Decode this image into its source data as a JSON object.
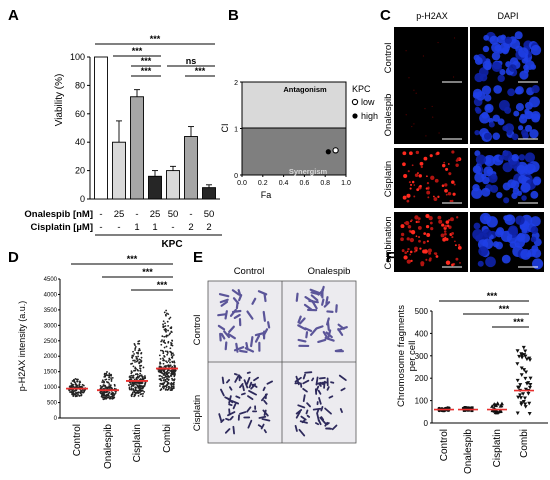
{
  "panels": {
    "A": {
      "letter": "A"
    },
    "B": {
      "letter": "B"
    },
    "C": {
      "letter": "C"
    },
    "D": {
      "letter": "D"
    },
    "E": {
      "letter": "E"
    },
    "F": {
      "letter": "F"
    }
  },
  "chart_data": [
    {
      "panel": "A",
      "type": "bar",
      "ylabel": "Viability (%)",
      "ylim": [
        0,
        100
      ],
      "yticks": [
        0,
        20,
        40,
        60,
        80,
        100
      ],
      "values": [
        100,
        40,
        72,
        16,
        20,
        44,
        8
      ],
      "errors": [
        0,
        15,
        5,
        4,
        3,
        7,
        2
      ],
      "fills": [
        "#ffffff",
        "#d9d9d9",
        "#a6a6a6",
        "#262626",
        "#d9d9d9",
        "#a6a6a6",
        "#262626"
      ],
      "condition_rows": [
        {
          "label": "Onalespib [nM]",
          "values": [
            "-",
            "25",
            "-",
            "25",
            "50",
            "-",
            "50"
          ]
        },
        {
          "label": "Cisplatin [µM]",
          "values": [
            "-",
            "-",
            "1",
            "1",
            "-",
            "2",
            "2"
          ]
        }
      ],
      "group_label": "KPC",
      "significance": [
        {
          "from": 0,
          "to": 6,
          "label": "***"
        },
        {
          "from": 1,
          "to": 3,
          "label": "***"
        },
        {
          "from": 2,
          "to": 3,
          "label": "***"
        },
        {
          "from": 2,
          "to": 3,
          "label": "***"
        },
        {
          "from": 4,
          "to": 6,
          "label": "ns"
        },
        {
          "from": 5,
          "to": 6,
          "label": "***"
        }
      ]
    },
    {
      "panel": "B",
      "type": "scatter",
      "xlabel": "Fa",
      "ylabel": "CI",
      "xlim": [
        0,
        1
      ],
      "ylim": [
        0,
        2
      ],
      "xticks": [
        "0.0",
        "0.2",
        "0.4",
        "0.6",
        "0.8",
        "1.0"
      ],
      "yticks": [
        "0",
        "1",
        "2"
      ],
      "regions": {
        "upper": "Antagonism",
        "lower": "Synergism",
        "upper_color": "#d9d9d9",
        "lower_color": "#7f7f7f"
      },
      "legend": {
        "title": "KPC",
        "entries": [
          "low",
          "high"
        ]
      },
      "series": [
        {
          "name": "low",
          "x": [
            0.9
          ],
          "y": [
            0.53
          ],
          "marker": "open-circle"
        },
        {
          "name": "high",
          "x": [
            0.83
          ],
          "y": [
            0.5
          ],
          "marker": "filled-circle"
        }
      ]
    },
    {
      "panel": "D",
      "type": "scatter",
      "ylabel": "p-H2AX intensity (a.u.)",
      "ylim": [
        0,
        4500
      ],
      "yticks": [
        "0",
        "500",
        "1000",
        "1500",
        "2000",
        "2500",
        "3000",
        "3500",
        "4000",
        "4500"
      ],
      "categories": [
        "Control",
        "Onalespib",
        "Cisplatin",
        "Combi"
      ],
      "means": [
        950,
        900,
        1200,
        1600
      ],
      "spread_low": [
        700,
        600,
        700,
        900
      ],
      "spread_high": [
        1300,
        1500,
        2500,
        3500
      ],
      "mean_color": "#e8302f",
      "significance": [
        {
          "from": 0,
          "to": 3,
          "label": "***"
        },
        {
          "from": 1,
          "to": 3,
          "label": "***"
        },
        {
          "from": 2,
          "to": 3,
          "label": "***"
        }
      ]
    },
    {
      "panel": "F",
      "type": "scatter",
      "ylabel": "Chromosome fragments per cell",
      "ylim": [
        0,
        500
      ],
      "yticks": [
        "0",
        "100",
        "200",
        "300",
        "400",
        "500"
      ],
      "categories": [
        "Control",
        "Onalespib",
        "Cisplatin",
        "Combi"
      ],
      "markers": [
        "circle",
        "square",
        "triangle",
        "triangle-down"
      ],
      "means": [
        60,
        60,
        60,
        145
      ],
      "spread_low": [
        55,
        55,
        45,
        40
      ],
      "spread_high": [
        68,
        70,
        90,
        340
      ],
      "mean_color": "#e8302f",
      "significance": [
        {
          "from": 0,
          "to": 3,
          "label": "***"
        },
        {
          "from": 1,
          "to": 3,
          "label": "***"
        },
        {
          "from": 2,
          "to": 3,
          "label": "***"
        }
      ]
    }
  ],
  "panel_c": {
    "columns": [
      "p-H2AX",
      "DAPI"
    ],
    "rows": [
      "Control",
      "Onalespib",
      "Cisplatin",
      "Combination"
    ],
    "column_colors": [
      "#c00000",
      "#1a2fd6"
    ]
  },
  "panel_e": {
    "columns": [
      "Control",
      "Onalespib"
    ],
    "rows": [
      "Control",
      "Cisplatin"
    ]
  }
}
